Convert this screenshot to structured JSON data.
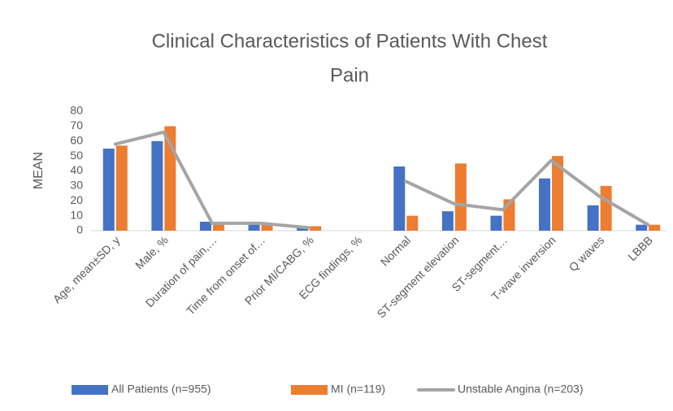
{
  "chart_data": {
    "type": "bar",
    "title": [
      "Clinical Characteristics of Patients With Chest",
      "Pain"
    ],
    "ylabel": "MEAN",
    "categories": [
      "Age, mean±SD, y",
      "Male, %",
      "Duration of pain,…",
      "Time from onset of…",
      "Prior MI/CABG, %",
      "ECG findings, %",
      "Normal",
      "ST-segment elevation",
      "ST-segment…",
      "T-wave inversion",
      "Q waves",
      "LBBB"
    ],
    "series": [
      {
        "name": "All Patients (n=955)",
        "type": "bar",
        "color": "#4472c4",
        "values": [
          55,
          60,
          6,
          5,
          2,
          null,
          43,
          13,
          10,
          35,
          17,
          4
        ]
      },
      {
        "name": "MI (n=119)",
        "type": "bar",
        "color": "#ed7d31",
        "values": [
          57,
          70,
          5,
          5,
          3,
          null,
          10,
          45,
          21,
          50,
          30,
          4
        ]
      },
      {
        "name": "Unstable Angina (n=203)",
        "type": "line",
        "color": "#a5a5a5",
        "values": [
          58,
          66,
          5,
          5,
          2,
          null,
          33,
          18,
          14,
          47,
          23,
          4
        ]
      }
    ],
    "ylim": [
      0,
      80
    ],
    "yticks": [
      0,
      10,
      20,
      30,
      40,
      50,
      60,
      70,
      80
    ],
    "grid": false,
    "legend": "bottom"
  }
}
